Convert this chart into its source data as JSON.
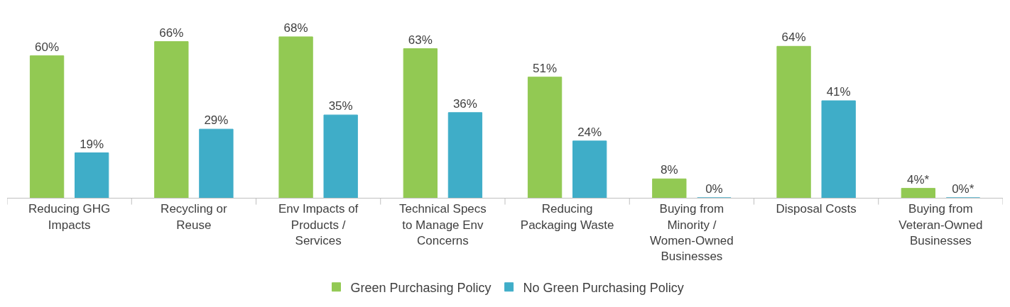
{
  "chart_data": {
    "type": "bar",
    "categories": [
      "Reducing GHG Impacts",
      "Recycling or Reuse",
      "Env Impacts of Products / Services",
      "Technical Specs to Manage Env Concerns",
      "Reducing Packaging Waste",
      "Buying from Minority / Women-Owned Businesses",
      "Disposal Costs",
      "Buying from Veteran-Owned Businesses"
    ],
    "series": [
      {
        "name": "Green Purchasing Policy",
        "color": "#92c953",
        "values": [
          60,
          66,
          68,
          63,
          51,
          8,
          64,
          4
        ],
        "value_labels": [
          "60%",
          "66%",
          "68%",
          "63%",
          "51%",
          "8%",
          "64%",
          "4%*"
        ]
      },
      {
        "name": "No Green Purchasing Policy",
        "color": "#3fadc8",
        "values": [
          19,
          29,
          35,
          36,
          24,
          0,
          41,
          0
        ],
        "value_labels": [
          "19%",
          "29%",
          "35%",
          "36%",
          "24%",
          "0%",
          "41%",
          "0%*"
        ]
      }
    ],
    "legend": "bottom"
  }
}
